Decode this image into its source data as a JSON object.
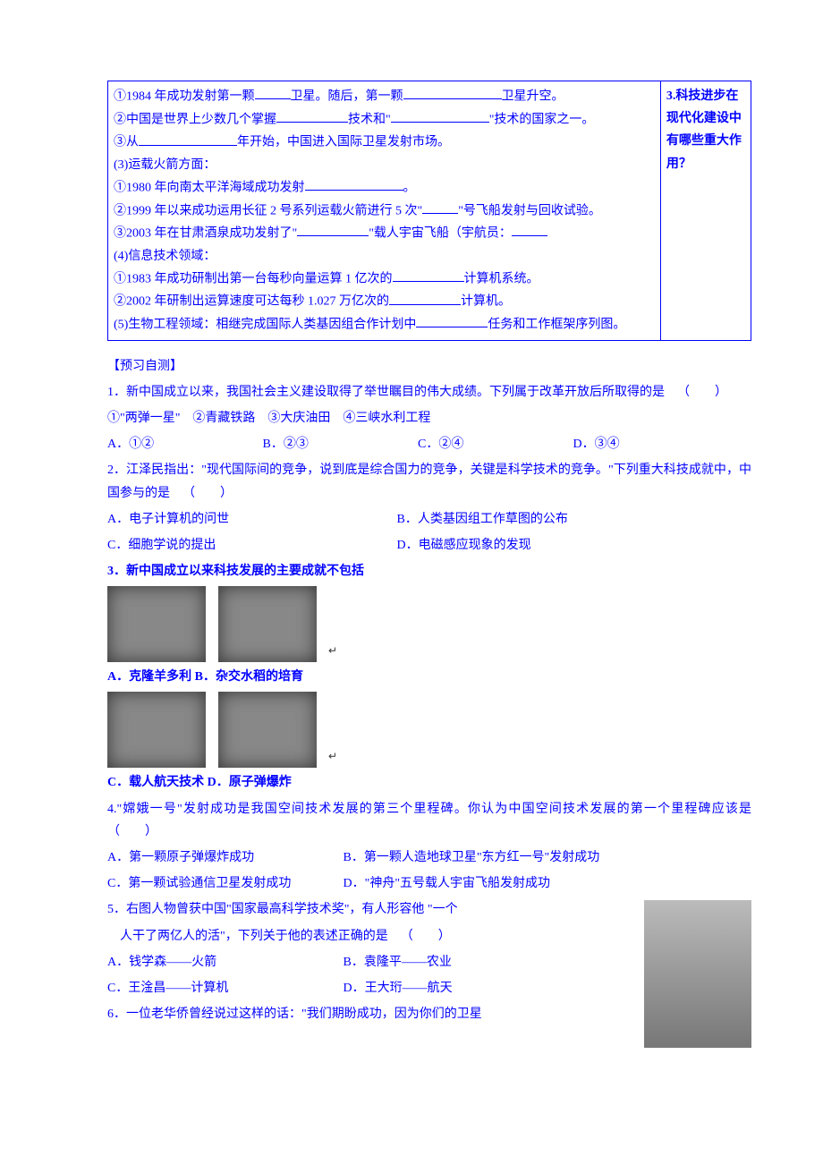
{
  "box": {
    "left": {
      "l1a": "①1984 年成功发射第一颗",
      "l1b": "卫星。随后，第一颗",
      "l1c": "卫星升空。",
      "l2a": "②中国是世界上少数几个掌握",
      "l2b": "技术和\"",
      "l2c": "\"技术的国家之一。",
      "l3a": "③从",
      "l3b": "年开始，中国进入国际卫星发射市场。",
      "l4": "(3)运载火箭方面：",
      "l5a": "①1980 年向南太平洋海域成功发射",
      "l5b": "。",
      "l6a": "②1999 年以来成功运用长征 2 号系列运载火箭进行 5 次\"",
      "l6b": "\"号飞船发射与回收试验。",
      "l7a": "③2003 年在甘肃酒泉成功发射了\"",
      "l7b": "\"载人宇宙飞船（宇航员：",
      "l8": "(4)信息技术领域：",
      "l9a": "①1983 年成功研制出第一台每秒向量运算 1 亿次的",
      "l9b": "计算机系统。",
      "l10a": "②2002 年研制出运算速度可达每秒 1.027 万亿次的",
      "l10b": "计算机。",
      "l11a": "(5)生物工程领域：相继完成国际人类基因组合作计划中",
      "l11b": "任务和工作框架序列图。"
    },
    "right": "3.科技进步在现代化建设中有哪些重大作用？"
  },
  "pretestTitle": "【预习自测】",
  "q1": {
    "stem": "1．新中国成立以来，我国社会主义建设取得了举世瞩目的伟大成绩。下列属于改革开放后所取得的是",
    "paren": "（　　）",
    "items": "①\"两弹一星\"　②青藏铁路　③大庆油田　④三峡水利工程",
    "A": "A．①②",
    "B": "B．②③",
    "C": "C．②④",
    "D": "D．③④"
  },
  "q2": {
    "stem": "2．江泽民指出：\"现代国际间的竞争，说到底是综合国力的竞争，关键是科学技术的竞争。\"下列重大科技成就中，中国参与的是",
    "paren": "（　　）",
    "A": "A．电子计算机的问世",
    "B": "B．人类基因组工作草图的公布",
    "C": "C．细胞学说的提出",
    "D": "D．电磁感应现象的发现"
  },
  "q3": {
    "stem": "3．新中国成立以来科技发展的主要成就不包括",
    "A": "A．克隆羊多利",
    "B": "B．杂交水稻的培育",
    "C": "C．载人航天技术",
    "D": "D．原子弹爆炸"
  },
  "q4": {
    "stem": "4.\"嫦娥一号\"发射成功是我国空间技术发展的第三个里程碑。你认为中国空间技术发展的第一个里程碑应该是",
    "paren": "（　　）",
    "A": "A．第一颗原子弹爆炸成功",
    "B": "B．第一颗人造地球卫星\"东方红一号\"发射成功",
    "C": "C．第一颗试验通信卫星发射成功",
    "D": "D．\"神舟\"五号载人宇宙飞船发射成功"
  },
  "q5": {
    "stem1": "5．右图人物曾获中国\"国家最高科学技术奖\"，有人形容他 \"一个",
    "stem2": "　人干了两亿人的活\"，下列关于他的表述正确的是",
    "paren": "（　　）",
    "A": "A．钱学森——火箭",
    "B": "B．袁隆平——农业",
    "C": "C．王淦昌——计算机",
    "D": "D．王大珩——航天"
  },
  "q6": {
    "stem": "6．一位老华侨曾经说过这样的话：\"我们期盼成功，因为你们的卫星"
  },
  "ret": "↵"
}
